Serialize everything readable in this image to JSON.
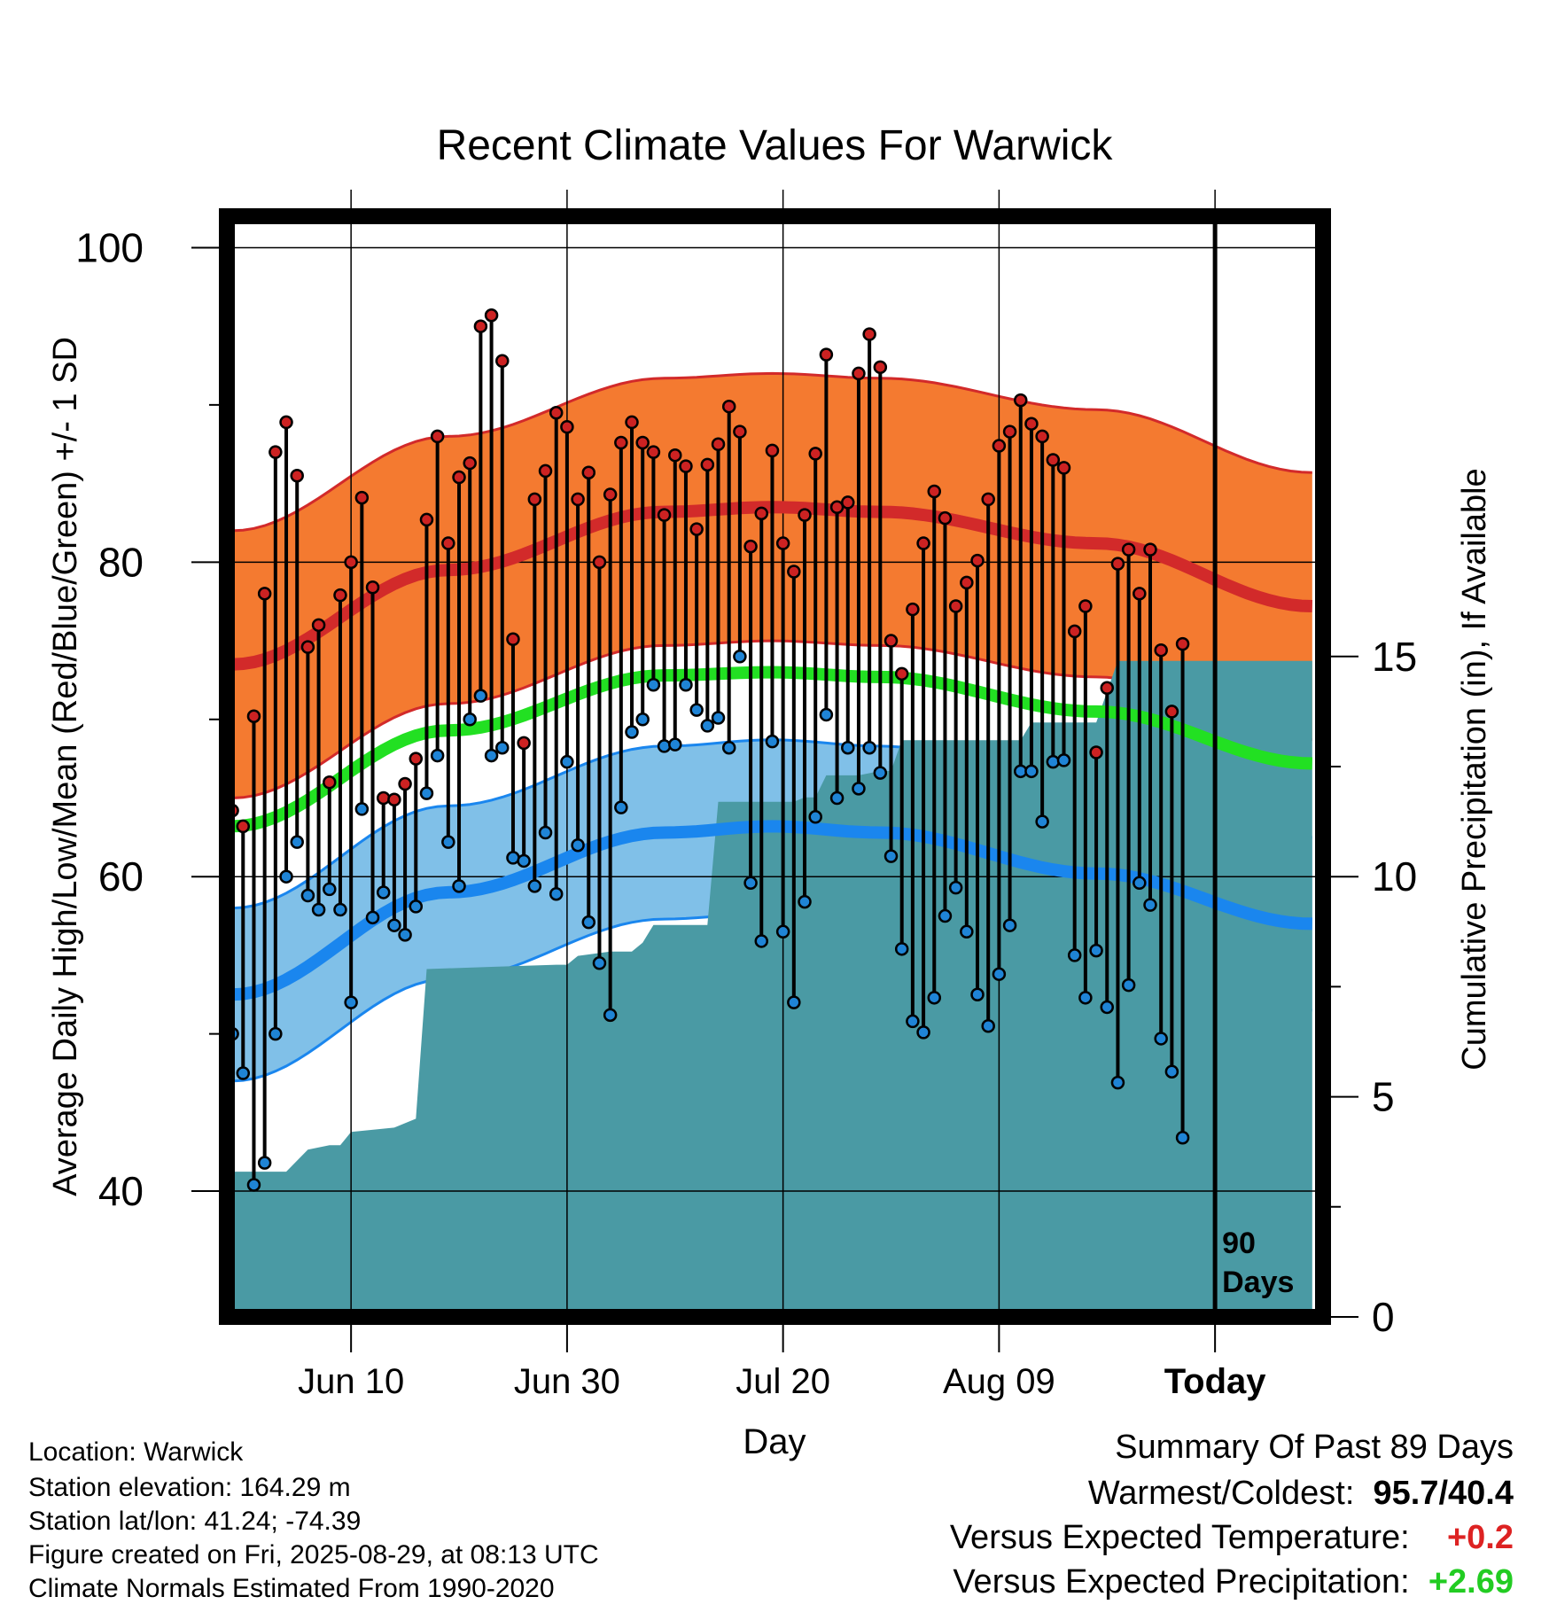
{
  "chart_data": {
    "type": "line",
    "title": "Recent Climate Values For Warwick",
    "xlabel": "Day",
    "ylabel": "Average Daily High/Low/Mean (Red/Blue/Green) +/- 1 SD",
    "y2label": "Cumulative Precipitation (in), If Available",
    "ylim": [
      32,
      102
    ],
    "y2lim": [
      0,
      25
    ],
    "yticks": [
      40,
      60,
      80,
      100
    ],
    "y2ticks": [
      0,
      5,
      10,
      15
    ],
    "xlim": [
      -0.5,
      101
    ],
    "xtick_labels": [
      {
        "day": 11,
        "label": "Jun 10"
      },
      {
        "day": 31,
        "label": "Jun 30"
      },
      {
        "day": 51,
        "label": "Jul 20"
      },
      {
        "day": 71,
        "label": "Aug 09"
      },
      {
        "day": 91,
        "label": "Today"
      }
    ],
    "today_day": 91,
    "today_marker_label": [
      "90",
      "Days"
    ],
    "normals": {
      "days": [
        0,
        20,
        40,
        50,
        60,
        80,
        100
      ],
      "high_mean": [
        73.5,
        79.5,
        83.2,
        83.5,
        83.2,
        81.2,
        77.2
      ],
      "high_sd": 8.5,
      "low_mean": [
        52.5,
        59.0,
        62.8,
        63.2,
        62.8,
        60.2,
        57.0
      ],
      "low_sd": 5.5,
      "mean": [
        63.2,
        69.3,
        72.8,
        73.0,
        72.7,
        70.5,
        67.2
      ]
    },
    "series": [
      {
        "name": "High",
        "color": "#cc2222",
        "values": [
          64.2,
          63.2,
          70.2,
          78,
          87,
          88.9,
          85.5,
          74.6,
          76,
          66,
          77.9,
          80,
          84.1,
          78.4,
          65,
          64.9,
          65.9,
          67.5,
          82.7,
          88,
          81.2,
          85.4,
          86.3,
          95,
          95.7,
          92.8,
          75.1,
          68.5,
          84,
          85.8,
          89.5,
          88.6,
          84,
          85.7,
          80,
          84.3,
          87.6,
          88.9,
          87.6,
          87,
          83,
          86.8,
          86.1,
          82.1,
          86.2,
          87.5,
          89.9,
          88.3,
          81,
          83.1,
          87.1,
          81.2,
          79.4,
          83,
          86.9,
          93.2,
          83.5,
          83.8,
          92,
          94.5,
          92.4,
          75,
          72.9,
          77,
          81.2,
          84.5,
          82.8,
          77.2,
          78.7,
          80.1,
          84,
          87.4,
          88.3,
          90.3,
          88.8,
          88,
          86.5,
          86,
          75.6,
          77.2,
          67.9,
          72,
          79.9,
          80.8,
          78,
          80.8,
          74.4,
          70.5,
          74.8
        ]
      },
      {
        "name": "Low",
        "color": "#1f84d6",
        "values": [
          50,
          47.5,
          40.4,
          41.8,
          50,
          60,
          62.2,
          58.8,
          57.9,
          59.2,
          57.9,
          52,
          64.3,
          57.4,
          59,
          56.9,
          56.3,
          58.1,
          65.3,
          67.7,
          62.2,
          59.4,
          70,
          71.5,
          67.7,
          68.2,
          61.2,
          61,
          59.4,
          62.8,
          58.9,
          67.3,
          62,
          57.1,
          54.5,
          51.2,
          64.4,
          69.2,
          70,
          72.2,
          68.3,
          68.4,
          72.2,
          70.6,
          69.6,
          70.1,
          68.2,
          74,
          59.6,
          55.9,
          68.6,
          56.5,
          52,
          58.4,
          63.8,
          70.3,
          65,
          68.2,
          65.6,
          68.2,
          66.6,
          61.3,
          55.4,
          50.8,
          50.1,
          52.3,
          57.5,
          59.3,
          56.5,
          52.5,
          50.5,
          53.8,
          56.9,
          66.7,
          66.7,
          63.5,
          67.3,
          67.4,
          55,
          52.3,
          55.3,
          51.7,
          46.9,
          53.1,
          59.6,
          58.2,
          49.7,
          47.6,
          43.4
        ]
      }
    ],
    "precip_cumulative": [
      [
        -0.5,
        0
      ],
      [
        -0.5,
        3.3
      ],
      [
        5,
        3.3
      ],
      [
        7,
        3.8
      ],
      [
        9,
        3.9
      ],
      [
        10,
        3.9
      ],
      [
        11,
        4.2
      ],
      [
        15,
        4.3
      ],
      [
        16,
        4.4
      ],
      [
        17,
        4.5
      ],
      [
        18,
        7.9
      ],
      [
        24,
        7.95
      ],
      [
        30,
        8.0
      ],
      [
        31,
        8.0
      ],
      [
        32,
        8.2
      ],
      [
        35,
        8.3
      ],
      [
        37,
        8.3
      ],
      [
        38,
        8.5
      ],
      [
        39,
        8.9
      ],
      [
        44,
        8.9
      ],
      [
        45,
        11.7
      ],
      [
        52,
        11.7
      ],
      [
        53,
        11.8
      ],
      [
        54,
        11.8
      ],
      [
        55,
        12.3
      ],
      [
        58,
        12.3
      ],
      [
        60,
        12.4
      ],
      [
        61,
        12.4
      ],
      [
        62,
        13.1
      ],
      [
        67,
        13.1
      ],
      [
        73,
        13.1
      ],
      [
        74,
        13.5
      ],
      [
        80,
        13.5
      ],
      [
        82,
        14.9
      ],
      [
        100,
        14.9
      ],
      [
        100,
        0
      ]
    ],
    "colors": {
      "high_band": "#f47a30",
      "high_line": "#d22a2a",
      "low_band": "#80c0e8",
      "low_line": "#1a86ee",
      "mean_line": "#22e022",
      "precip": "#4a9aa4",
      "warm_value": "#dd2222",
      "precip_value": "#22cc22"
    }
  },
  "info": {
    "location": "Location: Warwick",
    "elevation": "Station elevation: 164.29 m",
    "latlon": "Station lat/lon: 41.24; -74.39",
    "created": "Figure created on Fri, 2025-08-29, at 08:13 UTC",
    "normals_source": "Climate Normals Estimated From 1990-2020"
  },
  "summary": {
    "heading": "Summary Of Past 89 Days",
    "warmest_coldest_label": "Warmest/Coldest:",
    "warmest_coldest_value": "95.7/40.4",
    "temp_label": "Versus Expected Temperature:",
    "temp_value": "+0.2",
    "precip_label": "Versus Expected Precipitation:",
    "precip_value": "+2.69"
  }
}
